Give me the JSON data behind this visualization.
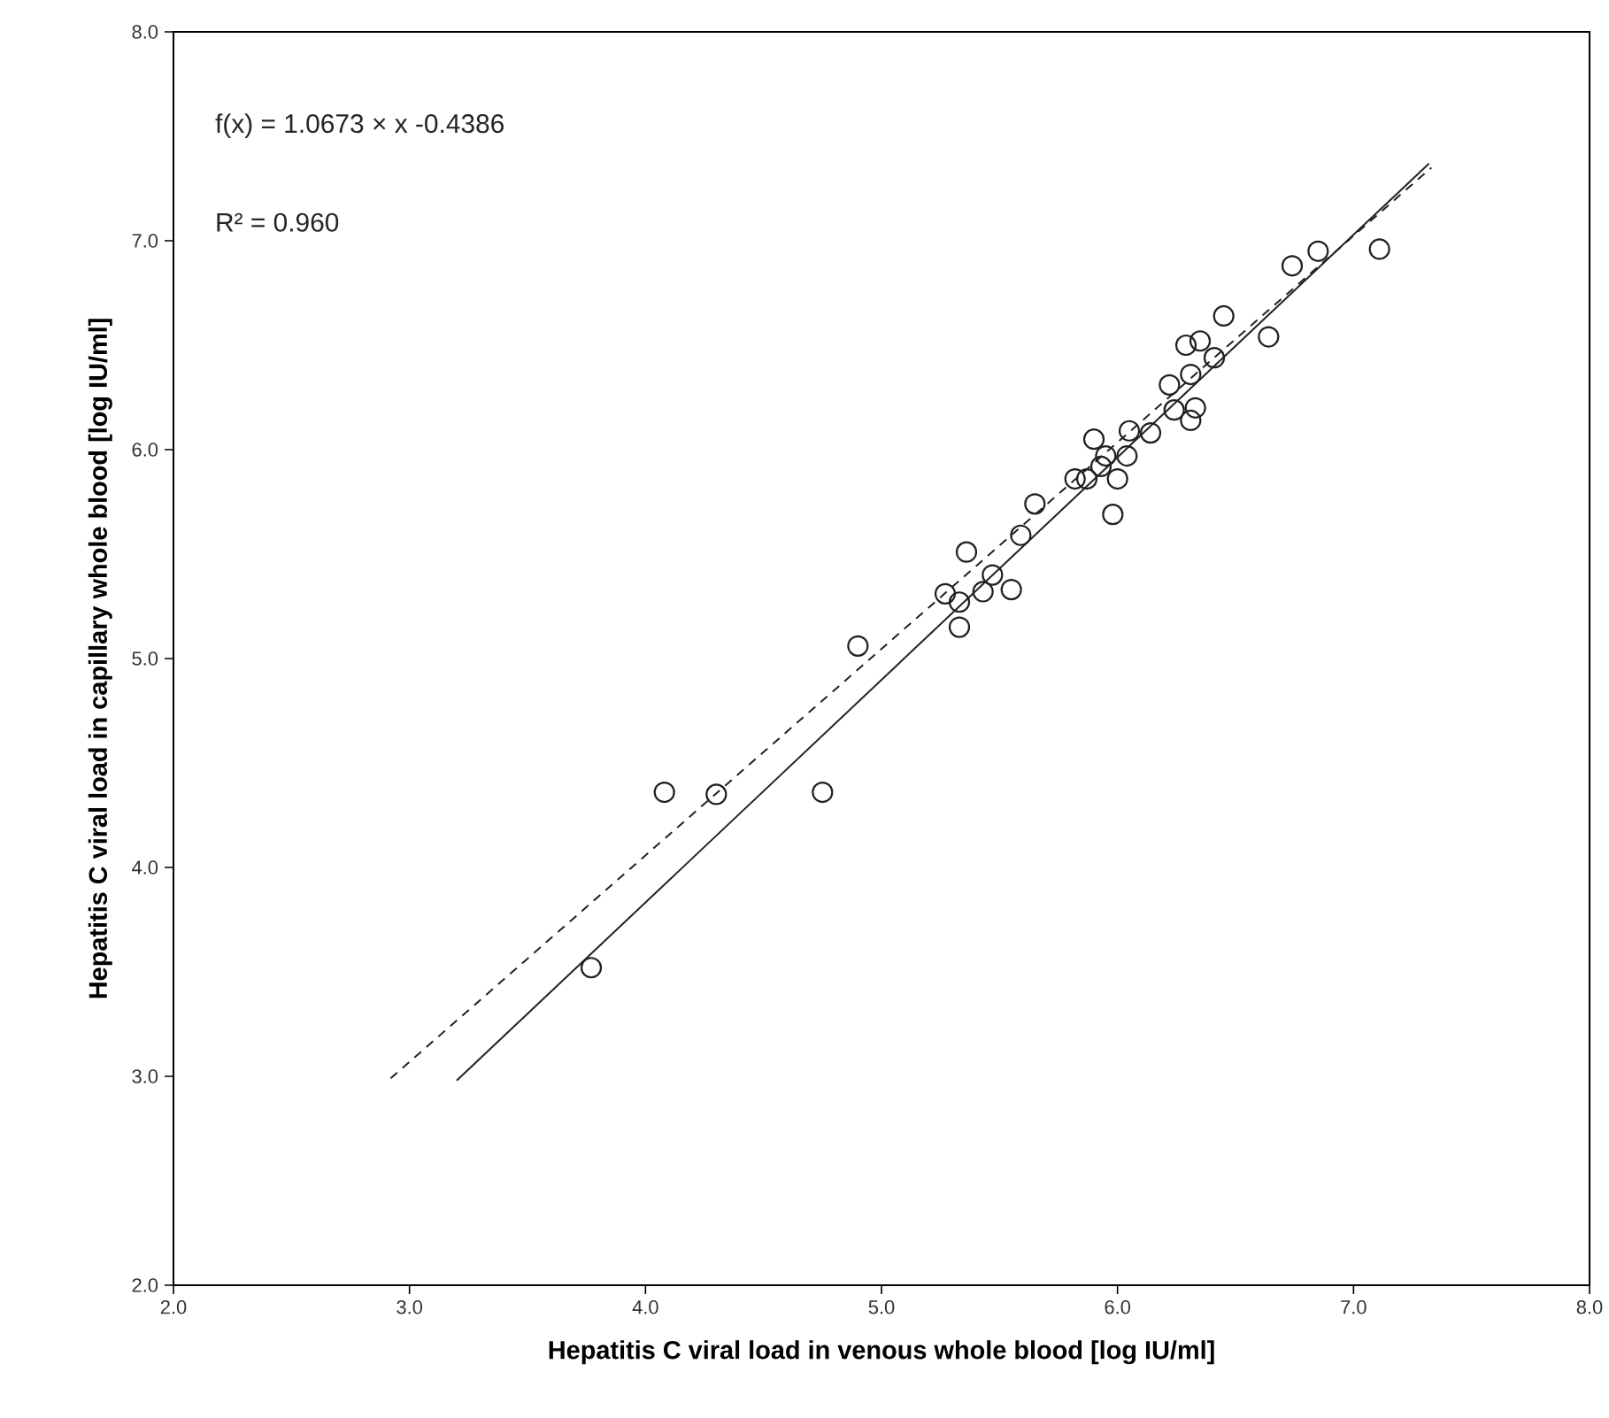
{
  "chart_data": {
    "type": "scatter",
    "xlabel": "Hepatitis C viral load in venous whole blood [log IU/ml]",
    "ylabel": "Hepatitis C viral load in capillary whole blood [log IU/ml]",
    "xlim": [
      2,
      8
    ],
    "ylim": [
      2,
      8
    ],
    "xticks": [
      {
        "value": 2,
        "label": "2.0"
      },
      {
        "value": 3,
        "label": "3.0"
      },
      {
        "value": 4,
        "label": "4.0"
      },
      {
        "value": 5,
        "label": "5.0"
      },
      {
        "value": 6,
        "label": "6.0"
      },
      {
        "value": 7,
        "label": "7.0"
      },
      {
        "value": 8,
        "label": "8.0"
      }
    ],
    "yticks": [
      {
        "value": 2,
        "label": "2.0"
      },
      {
        "value": 3,
        "label": "3.0"
      },
      {
        "value": 4,
        "label": "4.0"
      },
      {
        "value": 5,
        "label": "5.0"
      },
      {
        "value": 6,
        "label": "6.0"
      },
      {
        "value": 7,
        "label": "7.0"
      },
      {
        "value": 8,
        "label": "8.0"
      }
    ],
    "grid": false,
    "annotations": [
      {
        "text": "f(x) = 1.0673 × x -0.4386"
      },
      {
        "text": "R² = 0.960"
      }
    ],
    "series": [
      {
        "color": "#231f20",
        "marker": "circle",
        "x": [
          3.77,
          4.08,
          4.3,
          4.75,
          4.9,
          5.27,
          5.36,
          5.33,
          5.33,
          5.43,
          5.47,
          5.55,
          5.59,
          5.65,
          5.82,
          5.87,
          5.9,
          5.93,
          5.95,
          5.98,
          6.0,
          6.04,
          6.05,
          6.14,
          6.22,
          6.24,
          6.29,
          6.31,
          6.31,
          6.33,
          6.35,
          6.41,
          6.45,
          6.64,
          6.74,
          6.85,
          7.11
        ],
        "values": [
          3.52,
          4.36,
          4.35,
          4.36,
          5.06,
          5.31,
          5.51,
          5.27,
          5.15,
          5.32,
          5.4,
          5.33,
          5.59,
          5.74,
          5.86,
          5.86,
          6.05,
          5.92,
          5.97,
          5.69,
          5.86,
          5.97,
          6.09,
          6.08,
          6.31,
          6.19,
          6.5,
          6.36,
          6.14,
          6.2,
          6.52,
          6.44,
          6.64,
          6.54,
          6.88,
          6.95,
          6.96
        ]
      },
      {
        "type": "line",
        "color": "#231f20",
        "line_style": "solid",
        "marker": "none",
        "x": [
          3.2,
          7.32
        ],
        "values": [
          2.98,
          7.37
        ]
      },
      {
        "type": "line",
        "color": "#231f20",
        "line_style": "dashed",
        "marker": "none",
        "x": [
          2.92,
          7.33
        ],
        "values": [
          2.99,
          7.35
        ]
      }
    ]
  }
}
